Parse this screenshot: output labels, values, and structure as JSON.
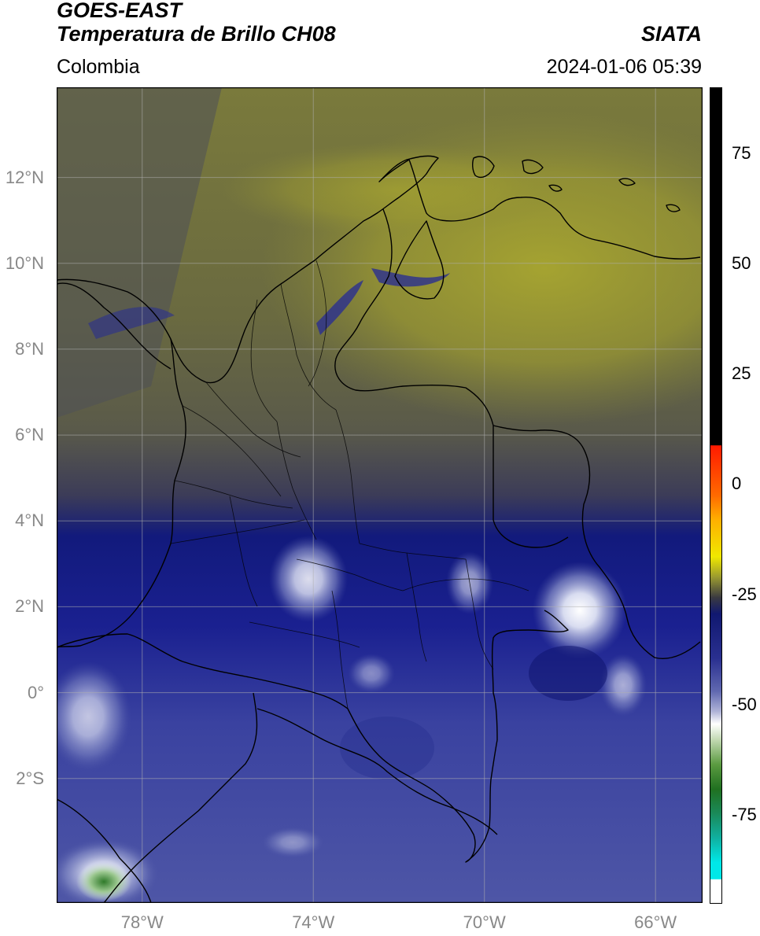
{
  "header": {
    "satellite": "GOES-EAST",
    "product": "Temperatura de Brillo CH08",
    "region": "Colombia",
    "agency": "SIATA",
    "timestamp": "2024-01-06 05:39"
  },
  "map": {
    "lon_range": [
      -80,
      -64.9
    ],
    "lat_range": [
      -4.9,
      14.1
    ],
    "lat_ticks": [
      {
        "value": 12,
        "label": "12°N"
      },
      {
        "value": 10,
        "label": "10°N"
      },
      {
        "value": 8,
        "label": "8°N"
      },
      {
        "value": 6,
        "label": "6°N"
      },
      {
        "value": 4,
        "label": "4°N"
      },
      {
        "value": 2,
        "label": "2°N"
      },
      {
        "value": 0,
        "label": "0°"
      },
      {
        "value": -2,
        "label": "2°S"
      }
    ],
    "lon_ticks": [
      {
        "value": -78,
        "label": "78°W"
      },
      {
        "value": -74,
        "label": "74°W"
      },
      {
        "value": -70,
        "label": "70°W"
      },
      {
        "value": -66,
        "label": "66°W"
      }
    ],
    "grid": true,
    "field_colors": {
      "north": "#8c8c2e",
      "middle": "#5a5a48",
      "south_dark": "#101880",
      "south": "#4a52a0"
    }
  },
  "colorbar": {
    "range": [
      -95,
      90
    ],
    "ticks": [
      {
        "value": 75,
        "label": "75"
      },
      {
        "value": 50,
        "label": "50"
      },
      {
        "value": 25,
        "label": "25"
      },
      {
        "value": 0,
        "label": "0"
      },
      {
        "value": -25,
        "label": "-25"
      },
      {
        "value": -50,
        "label": "-50"
      },
      {
        "value": -75,
        "label": "-75"
      }
    ]
  }
}
